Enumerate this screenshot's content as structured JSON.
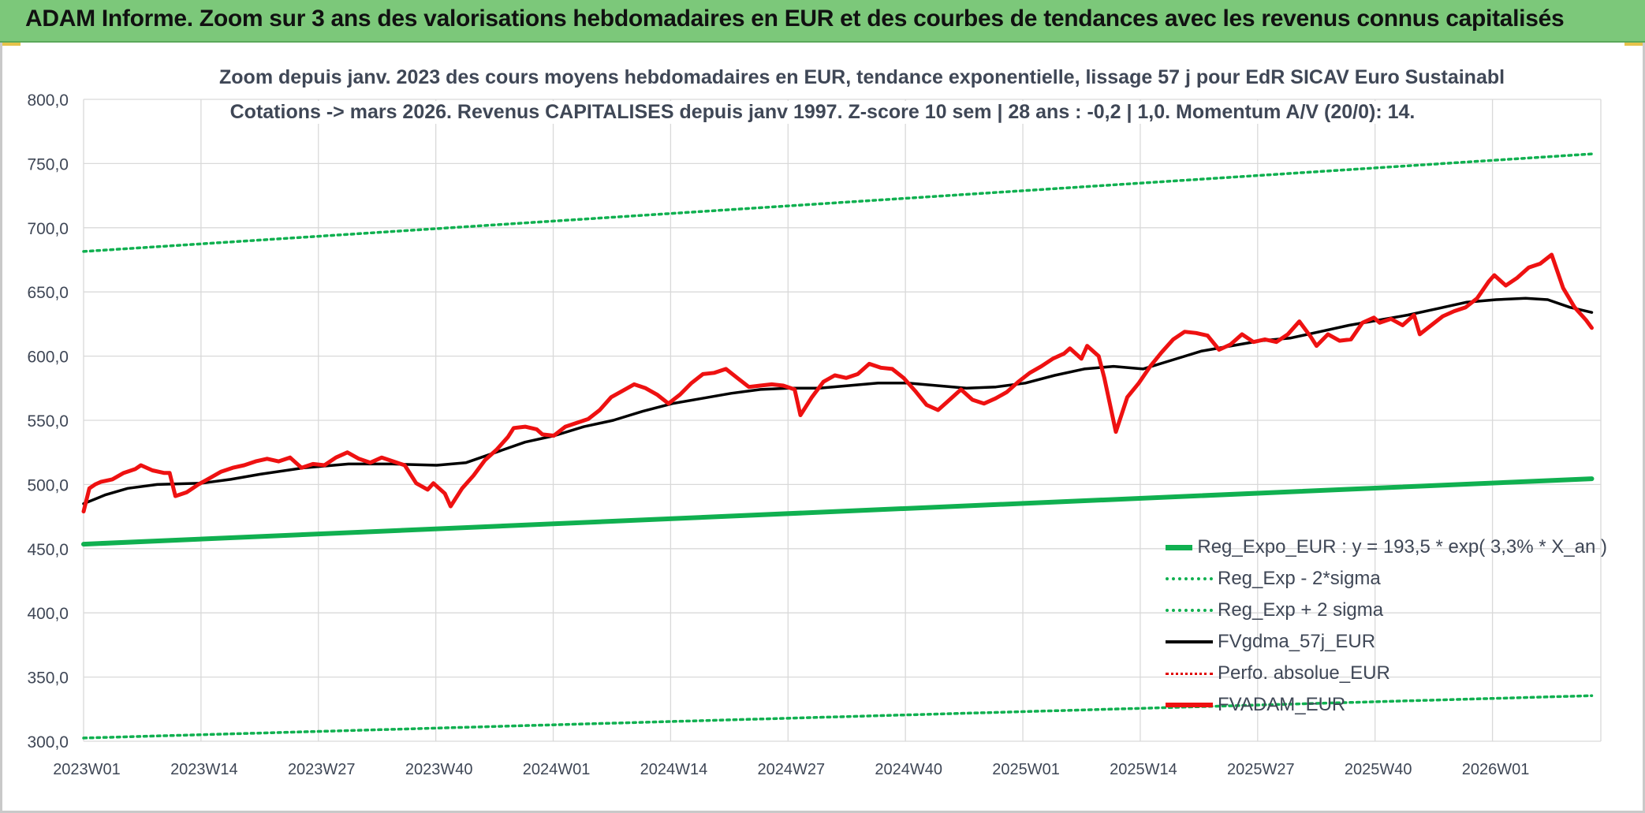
{
  "banner": {
    "title": "ADAM Informe. Zoom sur 3 ans des valorisations hebdomadaires en EUR et des courbes de tendances avec les revenus connus capitalisés"
  },
  "colors": {
    "banner_bg": "#7cc87a",
    "reg_expo": "#10b050",
    "reg_band": "#10b050",
    "fvgdma": "#000000",
    "perfo": "#e00000",
    "fvadam": "#ee1111",
    "gridline": "#d9d9d9",
    "axis_text": "#3f4756"
  },
  "chart_data": {
    "type": "line",
    "title_line1": "Zoom depuis janv. 2023 des cours moyens hebdomadaires en EUR, tendance exponentielle, lissage 57 j pour EdR SICAV Euro Sustainabl",
    "title_line2": "Cotations -> mars 2026. Revenus CAPITALISES depuis janv 1997. Z-score 10 sem | 28 ans : -0,2 | 1,0. Momentum A/V (20/0): 14.",
    "xlabel": "",
    "ylabel": "",
    "ylim": [
      300,
      800
    ],
    "yticks": [
      "300,0",
      "350,0",
      "400,0",
      "450,0",
      "500,0",
      "550,0",
      "600,0",
      "650,0",
      "700,0",
      "750,0",
      "800,0"
    ],
    "x_tick_labels": [
      "2023W01",
      "2023W14",
      "2023W27",
      "2023W40",
      "2024W01",
      "2024W14",
      "2024W27",
      "2024W40",
      "2025W01",
      "2025W14",
      "2025W27",
      "2025W40",
      "2026W01"
    ],
    "week_count": 168,
    "grid": true,
    "legend_position": "bottom-right",
    "series": [
      {
        "name": "Reg_Expo_EUR : y = 193,5 * exp( 3,3% *  X_an )",
        "style": "solid-thick",
        "color": "#10b050",
        "points": [
          [
            0,
            453.5
          ],
          [
            167,
            504.5
          ]
        ]
      },
      {
        "name": "Reg_Exp - 2*sigma",
        "style": "dotted",
        "color": "#10b050",
        "points": [
          [
            0,
            302.5
          ],
          [
            167,
            335.5
          ]
        ]
      },
      {
        "name": "Reg_Exp + 2 sigma",
        "style": "dotted",
        "color": "#10b050",
        "points": [
          [
            0,
            681.5
          ],
          [
            167,
            757.5
          ]
        ]
      },
      {
        "name": "FVgdma_57j_EUR",
        "style": "solid",
        "color": "#000000",
        "points": [
          [
            0,
            485
          ],
          [
            3,
            492
          ],
          [
            6,
            497
          ],
          [
            10,
            500
          ],
          [
            16,
            501
          ],
          [
            20,
            504
          ],
          [
            24,
            508
          ],
          [
            30,
            513
          ],
          [
            36,
            516
          ],
          [
            42,
            516
          ],
          [
            48,
            515
          ],
          [
            52,
            517
          ],
          [
            56,
            525
          ],
          [
            60,
            533
          ],
          [
            64,
            538
          ],
          [
            68,
            545
          ],
          [
            72,
            550
          ],
          [
            76,
            557
          ],
          [
            80,
            563
          ],
          [
            84,
            567
          ],
          [
            88,
            571
          ],
          [
            92,
            574
          ],
          [
            96,
            575
          ],
          [
            100,
            575
          ],
          [
            104,
            577
          ],
          [
            108,
            579
          ],
          [
            112,
            579
          ],
          [
            116,
            577
          ],
          [
            120,
            575
          ],
          [
            124,
            576
          ],
          [
            128,
            579
          ],
          [
            132,
            585
          ],
          [
            136,
            590
          ],
          [
            140,
            592
          ],
          [
            144,
            590
          ],
          [
            148,
            597
          ],
          [
            152,
            604
          ],
          [
            156,
            608
          ],
          [
            160,
            612
          ],
          [
            164,
            614
          ],
          [
            168,
            619
          ],
          [
            172,
            624
          ],
          [
            176,
            628
          ],
          [
            180,
            632
          ],
          [
            184,
            637
          ],
          [
            188,
            642
          ],
          [
            192,
            644
          ],
          [
            196,
            645
          ],
          [
            199,
            644
          ],
          [
            202,
            638
          ],
          [
            205,
            634
          ]
        ]
      },
      {
        "name": "Perfo. absolue_EUR",
        "style": "dotted",
        "color": "#e00000",
        "points": []
      },
      {
        "name": "FVADAM_EUR",
        "style": "solid-thick",
        "color": "#ee1111",
        "points": [
          [
            0,
            479
          ],
          [
            1,
            497
          ],
          [
            2,
            500
          ],
          [
            3,
            502
          ],
          [
            5,
            504
          ],
          [
            7,
            509
          ],
          [
            9,
            512
          ],
          [
            10,
            515
          ],
          [
            12,
            511
          ],
          [
            14,
            509
          ],
          [
            15,
            509
          ],
          [
            16,
            491
          ],
          [
            18,
            494
          ],
          [
            20,
            500
          ],
          [
            22,
            505
          ],
          [
            24,
            510
          ],
          [
            26,
            513
          ],
          [
            28,
            515
          ],
          [
            30,
            518
          ],
          [
            32,
            520
          ],
          [
            34,
            518
          ],
          [
            36,
            521
          ],
          [
            38,
            513
          ],
          [
            40,
            516
          ],
          [
            42,
            515
          ],
          [
            44,
            521
          ],
          [
            46,
            525
          ],
          [
            48,
            520
          ],
          [
            50,
            517
          ],
          [
            52,
            521
          ],
          [
            54,
            518
          ],
          [
            56,
            515
          ],
          [
            58,
            501
          ],
          [
            60,
            496
          ],
          [
            61,
            501
          ],
          [
            63,
            493
          ],
          [
            64,
            483
          ],
          [
            66,
            497
          ],
          [
            68,
            507
          ],
          [
            70,
            519
          ],
          [
            72,
            527
          ],
          [
            74,
            537
          ],
          [
            75,
            544
          ],
          [
            77,
            545
          ],
          [
            79,
            543
          ],
          [
            80,
            539
          ],
          [
            82,
            538
          ],
          [
            84,
            545
          ],
          [
            86,
            548
          ],
          [
            88,
            551
          ],
          [
            90,
            558
          ],
          [
            92,
            568
          ],
          [
            94,
            573
          ],
          [
            96,
            578
          ],
          [
            98,
            575
          ],
          [
            100,
            570
          ],
          [
            102,
            563
          ],
          [
            104,
            570
          ],
          [
            106,
            579
          ],
          [
            108,
            586
          ],
          [
            110,
            587
          ],
          [
            112,
            590
          ],
          [
            114,
            583
          ],
          [
            116,
            576
          ],
          [
            118,
            577
          ],
          [
            120,
            578
          ],
          [
            122,
            577
          ],
          [
            124,
            574
          ],
          [
            125,
            554
          ],
          [
            127,
            568
          ],
          [
            129,
            580
          ],
          [
            131,
            585
          ],
          [
            133,
            583
          ],
          [
            135,
            586
          ],
          [
            137,
            594
          ],
          [
            139,
            591
          ],
          [
            141,
            590
          ],
          [
            143,
            583
          ],
          [
            145,
            573
          ],
          [
            147,
            562
          ],
          [
            149,
            558
          ],
          [
            151,
            566
          ],
          [
            153,
            574
          ],
          [
            155,
            566
          ],
          [
            157,
            563
          ],
          [
            159,
            567
          ],
          [
            161,
            572
          ],
          [
            163,
            580
          ],
          [
            165,
            587
          ],
          [
            167,
            592
          ],
          [
            169,
            598
          ],
          [
            171,
            602
          ],
          [
            172,
            606
          ],
          [
            174,
            598
          ],
          [
            175,
            608
          ],
          [
            177,
            600
          ],
          [
            178,
            583
          ],
          [
            180,
            541
          ],
          [
            182,
            568
          ],
          [
            184,
            579
          ],
          [
            186,
            592
          ],
          [
            188,
            603
          ],
          [
            190,
            613
          ],
          [
            192,
            619
          ],
          [
            194,
            618
          ],
          [
            196,
            616
          ],
          [
            198,
            605
          ],
          [
            200,
            609
          ],
          [
            202,
            617
          ],
          [
            204,
            611
          ],
          [
            206,
            613
          ],
          [
            208,
            611
          ],
          [
            210,
            617
          ],
          [
            212,
            627
          ],
          [
            214,
            615
          ],
          [
            215,
            608
          ],
          [
            217,
            617
          ],
          [
            219,
            612
          ],
          [
            221,
            613
          ],
          [
            223,
            626
          ],
          [
            225,
            630
          ],
          [
            226,
            626
          ],
          [
            228,
            629
          ],
          [
            230,
            624
          ],
          [
            232,
            632
          ],
          [
            233,
            617
          ],
          [
            235,
            624
          ],
          [
            237,
            631
          ],
          [
            239,
            635
          ],
          [
            241,
            638
          ],
          [
            243,
            645
          ],
          [
            245,
            658
          ],
          [
            246,
            663
          ],
          [
            248,
            655
          ],
          [
            250,
            661
          ],
          [
            252,
            669
          ],
          [
            254,
            672
          ],
          [
            256,
            679
          ],
          [
            258,
            653
          ],
          [
            260,
            638
          ],
          [
            262,
            628
          ],
          [
            263,
            622
          ]
        ]
      }
    ]
  }
}
